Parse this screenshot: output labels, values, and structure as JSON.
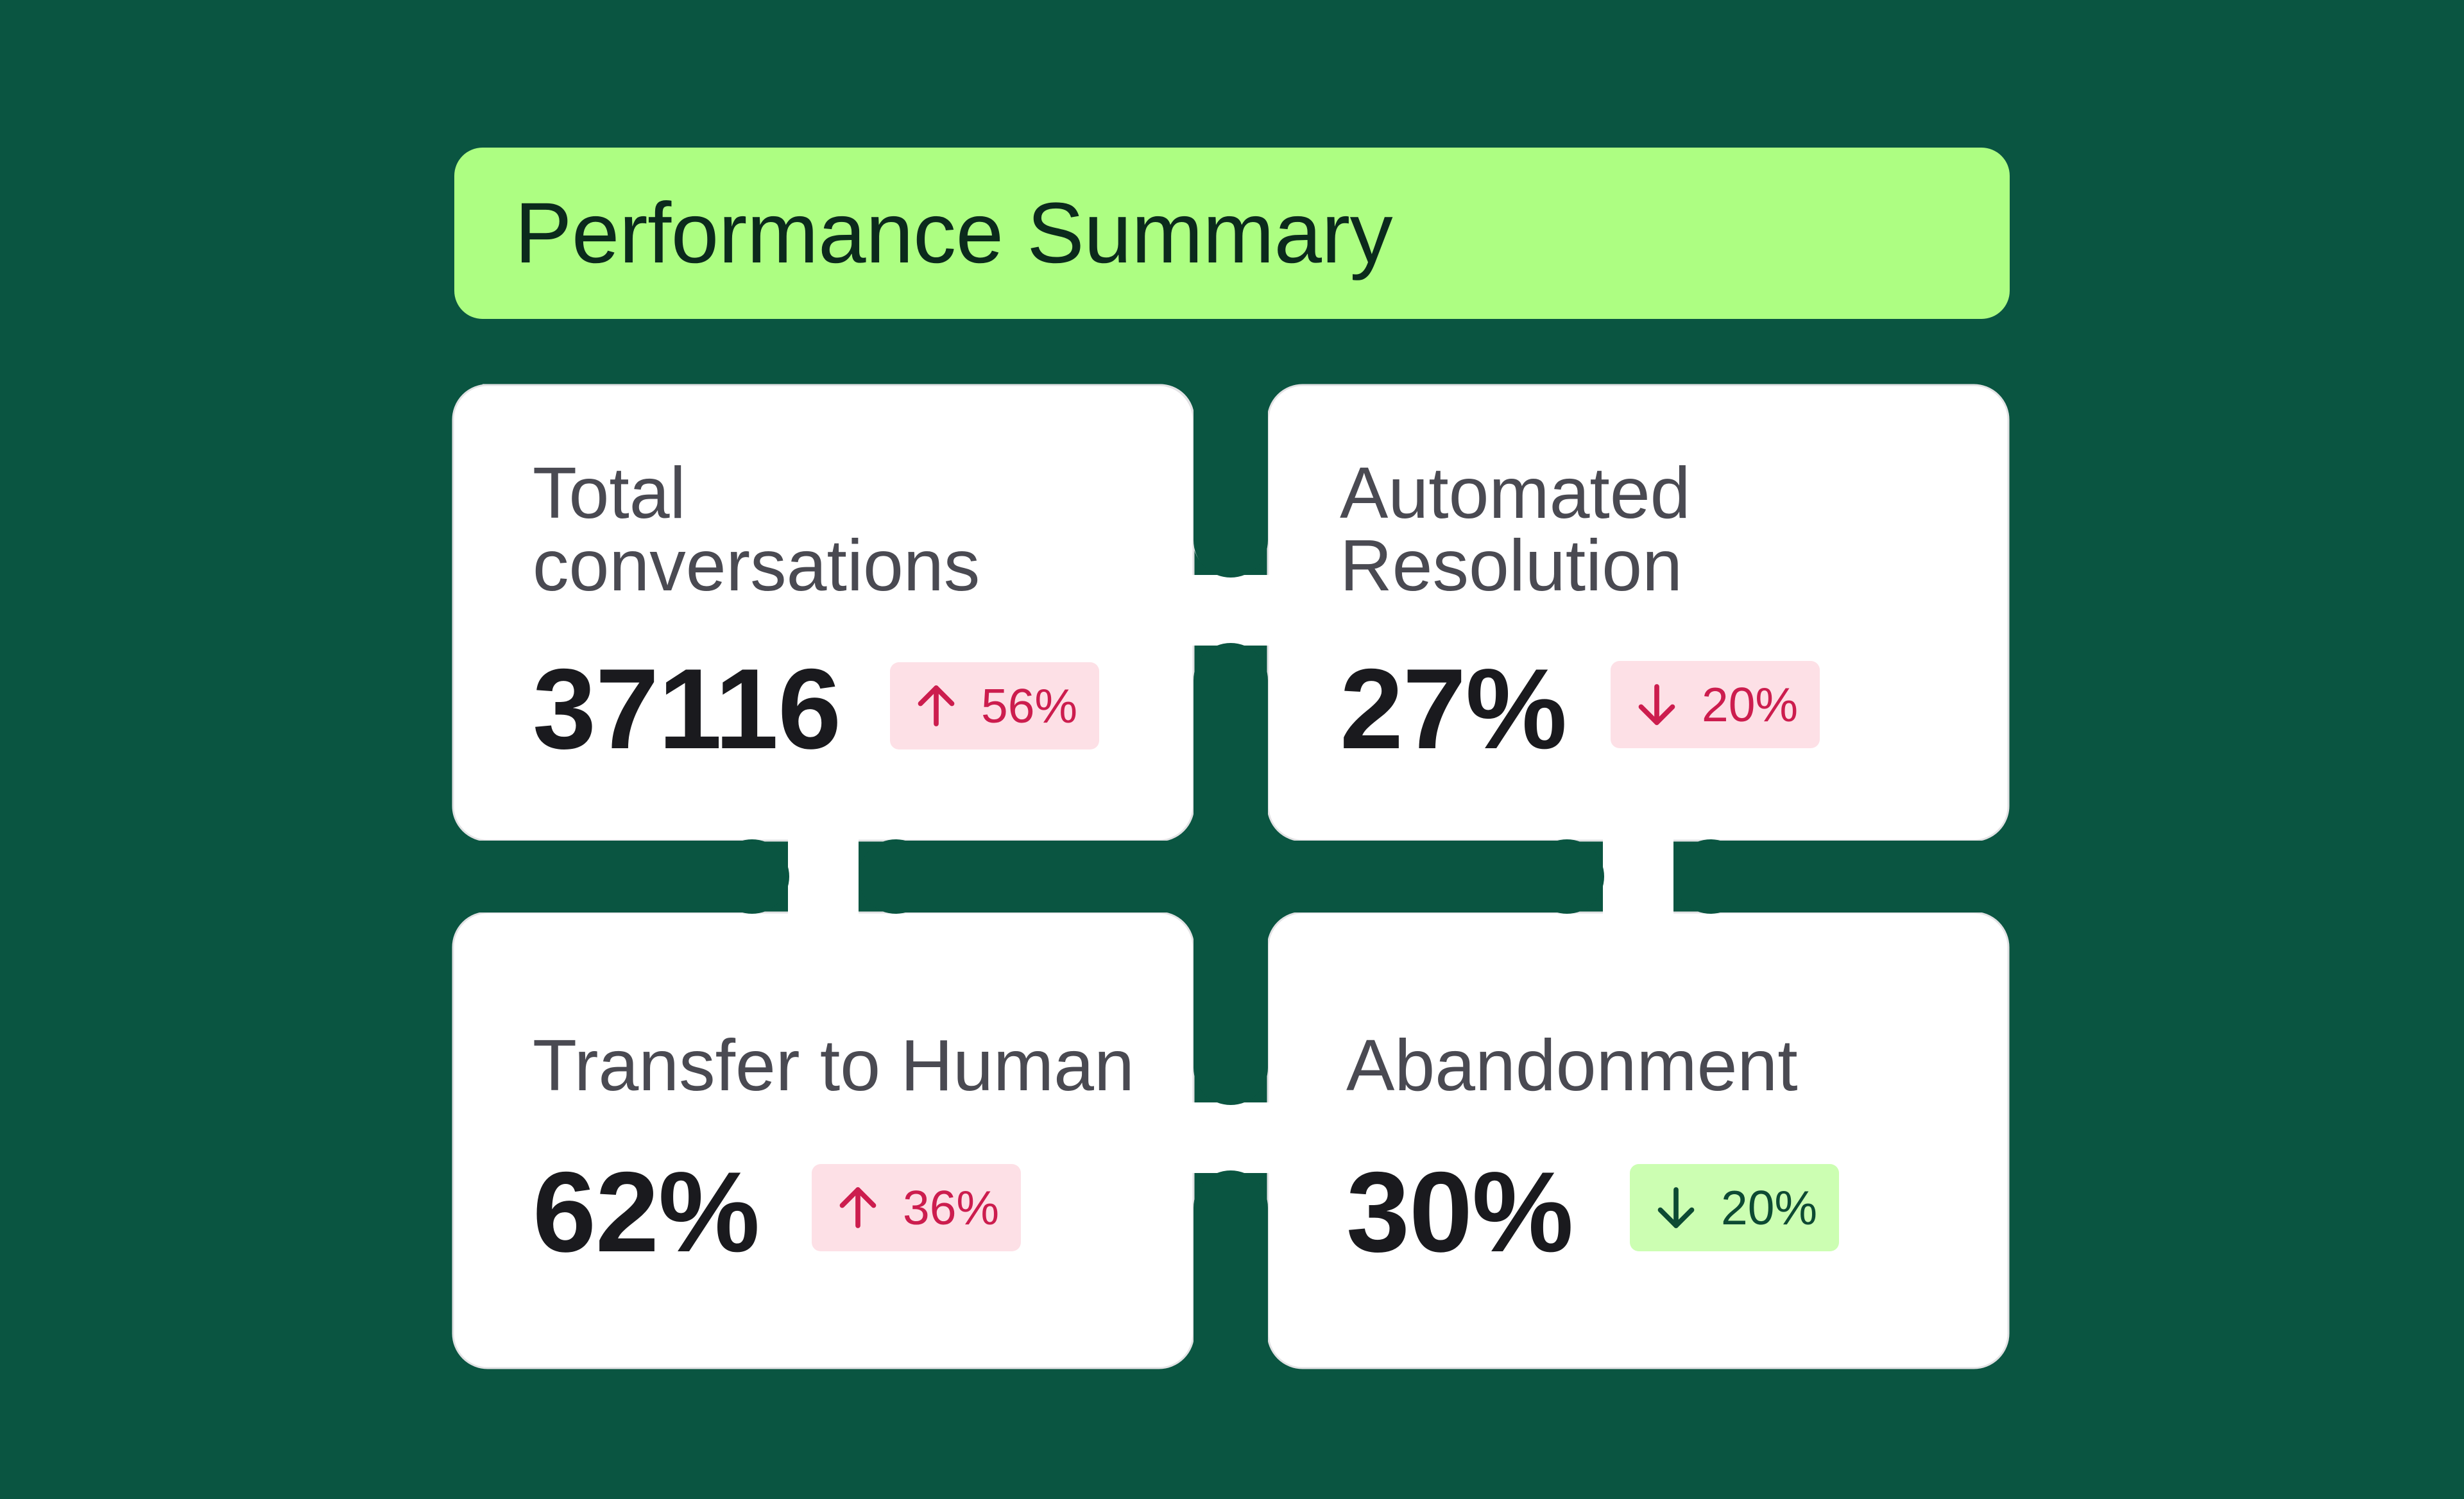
{
  "header": {
    "title": "Performance Summary"
  },
  "cards": [
    {
      "label": "Total\nconversations",
      "value": "37116",
      "change": {
        "direction": "up",
        "text": "56%",
        "tone": "red"
      }
    },
    {
      "label": "Automated\nResolution",
      "value": "27%",
      "change": {
        "direction": "down",
        "text": "20%",
        "tone": "red"
      }
    },
    {
      "label": "Transfer to Human",
      "value": "62%",
      "change": {
        "direction": "up",
        "text": "36%",
        "tone": "red"
      }
    },
    {
      "label": "Abandonment",
      "value": "30%",
      "change": {
        "direction": "down",
        "text": "20%",
        "tone": "green"
      }
    }
  ],
  "colors": {
    "background": "#0a5541",
    "header": "#adfe82",
    "card": "#ffffff",
    "badge_red_bg": "#fde0e6",
    "badge_red_text": "#cc1d4e",
    "badge_green_bg": "#ccfeb2",
    "badge_green_text": "#0d4a33"
  },
  "icons": {
    "up": "arrow-up-icon",
    "down": "arrow-down-icon"
  }
}
